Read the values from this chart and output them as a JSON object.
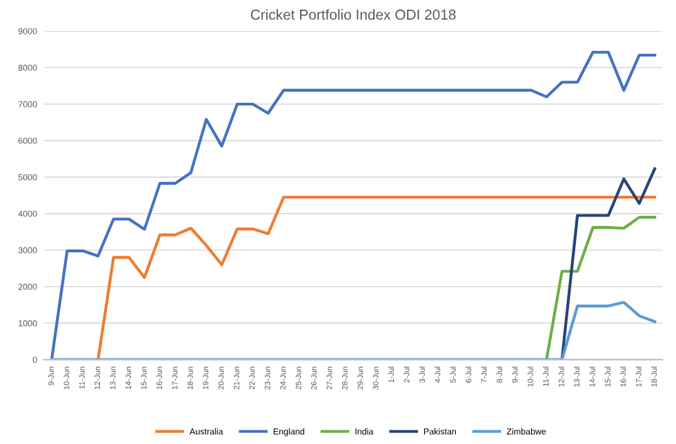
{
  "chart_data": {
    "type": "line",
    "title": "Cricket Portfolio Index ODI 2018",
    "categories": [
      "9-Jun",
      "10-Jun",
      "11-Jun",
      "12-Jun",
      "13-Jun",
      "14-Jun",
      "15-Jun",
      "16-Jun",
      "17-Jun",
      "18-Jun",
      "19-Jun",
      "20-Jun",
      "21-Jun",
      "22-Jun",
      "23-Jun",
      "24-Jun",
      "25-Jun",
      "26-Jun",
      "27-Jun",
      "28-Jun",
      "29-Jun",
      "30-Jun",
      "1-Jul",
      "2-Jul",
      "3-Jul",
      "4-Jul",
      "5-Jul",
      "6-Jul",
      "7-Jul",
      "8-Jul",
      "9-Jul",
      "10-Jul",
      "11-Jul",
      "12-Jul",
      "13-Jul",
      "14-Jul",
      "15-Jul",
      "16-Jul",
      "17-Jul",
      "18-Jul"
    ],
    "series": [
      {
        "name": "Australia",
        "color": "#ed7d31",
        "values": [
          null,
          null,
          null,
          0,
          2800,
          2800,
          2250,
          3420,
          3420,
          3600,
          3130,
          2600,
          3580,
          3580,
          3450,
          4450,
          4450,
          4450,
          4450,
          4450,
          4450,
          4450,
          4450,
          4450,
          4450,
          4450,
          4450,
          4450,
          4450,
          4450,
          4450,
          4450,
          4450,
          4450,
          4450,
          4450,
          4450,
          4450,
          4450,
          4450
        ]
      },
      {
        "name": "England",
        "color": "#4472c4",
        "values": [
          0,
          2980,
          2980,
          2840,
          3850,
          3850,
          3570,
          4830,
          4830,
          5120,
          6580,
          5850,
          7000,
          7000,
          6750,
          7380,
          7380,
          7380,
          7380,
          7380,
          7380,
          7380,
          7380,
          7380,
          7380,
          7380,
          7380,
          7380,
          7380,
          7380,
          7380,
          7380,
          7200,
          7600,
          7600,
          8420,
          8420,
          7380,
          8340,
          8340
        ]
      },
      {
        "name": "India",
        "color": "#70ad47",
        "values": [
          null,
          null,
          null,
          null,
          null,
          null,
          null,
          null,
          null,
          null,
          null,
          null,
          null,
          null,
          null,
          null,
          null,
          null,
          null,
          null,
          null,
          null,
          null,
          null,
          null,
          null,
          null,
          null,
          null,
          null,
          null,
          null,
          0,
          2420,
          2420,
          3620,
          3620,
          3600,
          3900,
          3900
        ]
      },
      {
        "name": "Pakistan",
        "color": "#264478",
        "values": [
          null,
          null,
          null,
          null,
          null,
          null,
          null,
          null,
          null,
          null,
          null,
          null,
          null,
          null,
          null,
          null,
          null,
          null,
          null,
          null,
          null,
          null,
          null,
          null,
          null,
          null,
          null,
          null,
          null,
          null,
          null,
          null,
          null,
          0,
          3950,
          3950,
          3950,
          4950,
          4280,
          5230
        ]
      },
      {
        "name": "Zimbabwe",
        "color": "#5b9bd5",
        "values": [
          0,
          0,
          0,
          0,
          0,
          0,
          0,
          0,
          0,
          0,
          0,
          0,
          0,
          0,
          0,
          0,
          0,
          0,
          0,
          0,
          0,
          0,
          0,
          0,
          0,
          0,
          0,
          0,
          0,
          0,
          0,
          0,
          0,
          0,
          1470,
          1470,
          1470,
          1570,
          1200,
          1040
        ]
      }
    ],
    "ylim": [
      0,
      9000
    ],
    "yticks": [
      0,
      1000,
      2000,
      3000,
      4000,
      5000,
      6000,
      7000,
      8000,
      9000
    ],
    "grid": "y",
    "legend": "bottom",
    "marker": "none",
    "line_style": "solid"
  }
}
